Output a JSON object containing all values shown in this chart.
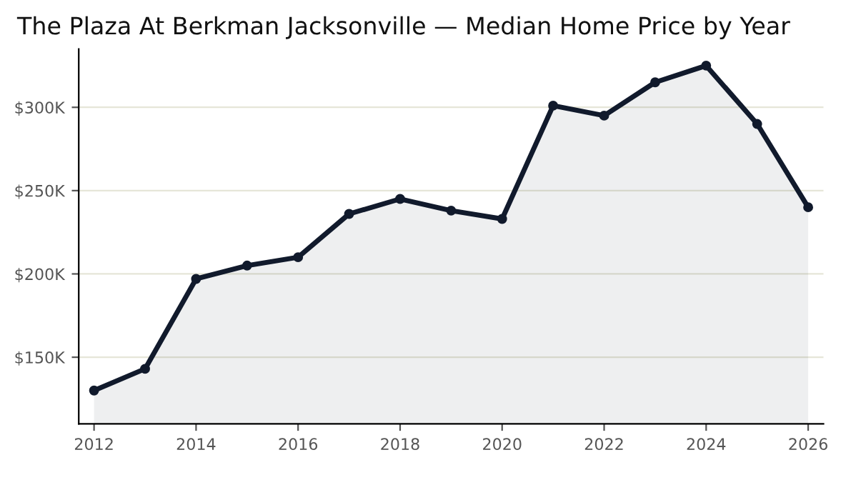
{
  "chart_data": {
    "type": "area",
    "title": "The Plaza At Berkman Jacksonville — Median Home Price by Year",
    "x": [
      2012,
      2013,
      2014,
      2015,
      2016,
      2017,
      2018,
      2019,
      2020,
      2021,
      2022,
      2023,
      2024,
      2025,
      2026
    ],
    "series": [
      {
        "color": "#111a2c",
        "values": [
          130000,
          143000,
          197000,
          205000,
          210000,
          236000,
          245000,
          238000,
          233000,
          301000,
          295000,
          315000,
          325000,
          290000,
          240000
        ]
      }
    ],
    "xlim": [
      2011.7,
      2026.3
    ],
    "xticks": [
      2012,
      2014,
      2016,
      2018,
      2020,
      2022,
      2024,
      2026
    ],
    "ylim": [
      110000,
      335000
    ],
    "yticks": [
      {
        "value": 150000,
        "label": "$150K"
      },
      {
        "value": 200000,
        "label": "$200K"
      },
      {
        "value": 250000,
        "label": "$250K"
      },
      {
        "value": 300000,
        "label": "$300K"
      }
    ],
    "grid": "y",
    "marker": "circle",
    "line_style": "solid",
    "legend": false
  }
}
